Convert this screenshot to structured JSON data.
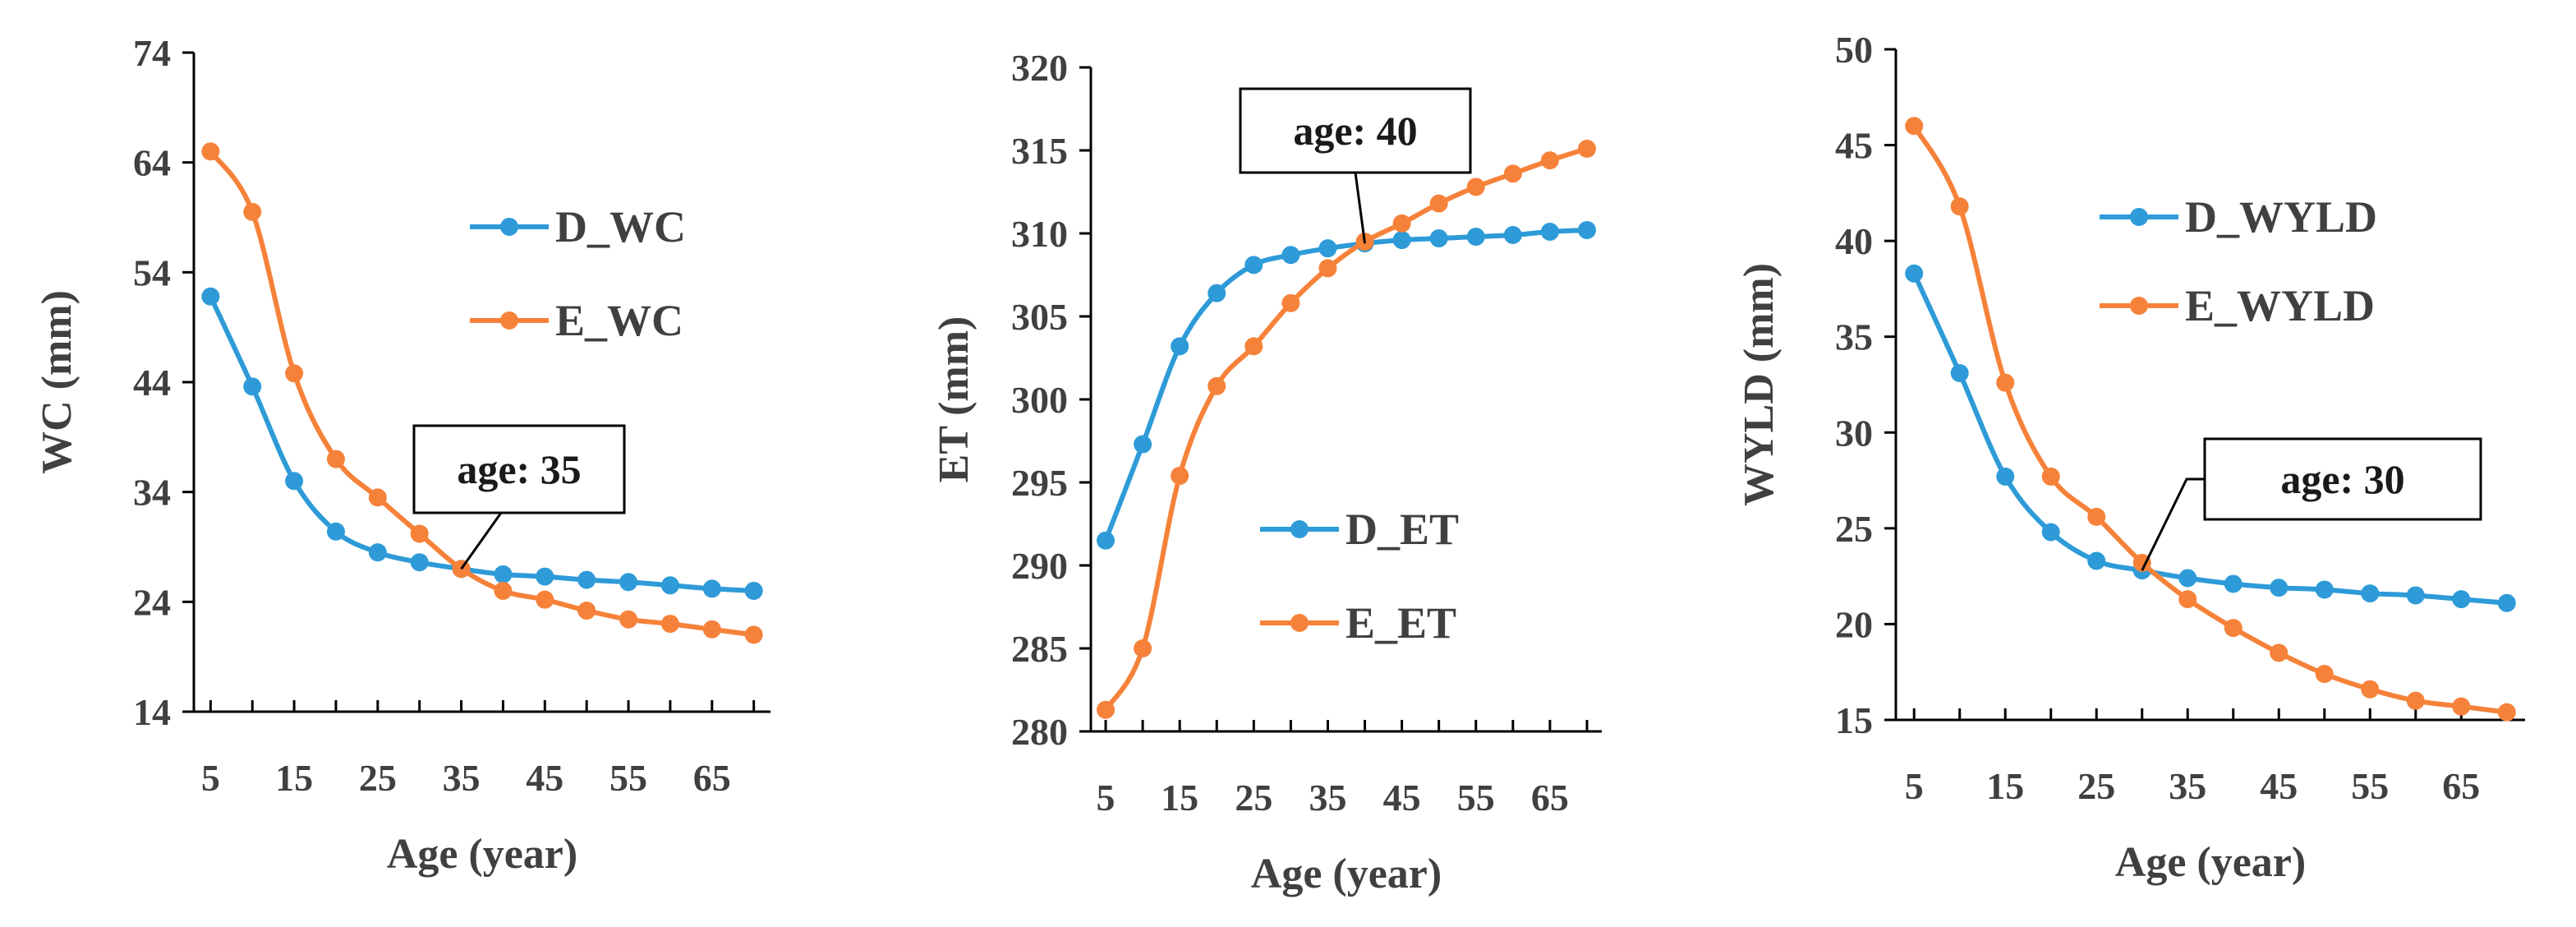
{
  "colors": {
    "D": "#2E9BD8",
    "E": "#F6823A"
  },
  "chart_data": [
    {
      "type": "line",
      "ylabel": "WC (mm)",
      "xlabel": "Age (year)",
      "ylim": [
        14,
        74
      ],
      "yticks": [
        14,
        24,
        34,
        44,
        54,
        64,
        74
      ],
      "xlim": [
        3,
        72
      ],
      "xtick_labels": [
        5,
        15,
        25,
        35,
        45,
        55,
        65
      ],
      "x": [
        5,
        10,
        15,
        20,
        25,
        30,
        35,
        40,
        45,
        50,
        55,
        60,
        65,
        70
      ],
      "series": [
        {
          "name": "D_WC",
          "color_key": "D",
          "values": [
            51.8,
            43.6,
            35,
            30.4,
            28.5,
            27.6,
            27,
            26.5,
            26.3,
            26,
            25.8,
            25.5,
            25.2,
            25
          ]
        },
        {
          "name": "E_WC",
          "color_key": "E",
          "values": [
            65,
            59.5,
            44.8,
            37,
            33.5,
            30.2,
            27,
            25,
            24.2,
            23.2,
            22.4,
            22,
            21.5,
            21
          ]
        }
      ],
      "legend_position": "right-middle",
      "annotation": {
        "text": "age: 35",
        "x": 35
      }
    },
    {
      "type": "line",
      "ylabel": "ET (mm)",
      "xlabel": "Age (year)",
      "ylim": [
        280,
        320
      ],
      "yticks": [
        280,
        285,
        290,
        295,
        300,
        305,
        310,
        315,
        320
      ],
      "xlim": [
        3,
        72
      ],
      "xtick_labels": [
        5,
        15,
        25,
        35,
        45,
        55,
        65
      ],
      "x": [
        5,
        10,
        15,
        20,
        25,
        30,
        35,
        40,
        45,
        50,
        55,
        60,
        65,
        70
      ],
      "series": [
        {
          "name": "D_ET",
          "color_key": "D",
          "values": [
            291.5,
            297.3,
            303.2,
            306.4,
            308.1,
            308.7,
            309.1,
            309.4,
            309.6,
            309.7,
            309.8,
            309.9,
            310.1,
            310.2
          ]
        },
        {
          "name": "E_ET",
          "color_key": "E",
          "values": [
            281.3,
            285,
            295.4,
            300.8,
            303.2,
            305.8,
            307.9,
            309.5,
            310.6,
            311.8,
            312.8,
            313.6,
            314.4,
            315.1
          ]
        }
      ],
      "legend_position": "bottom-right",
      "annotation": {
        "text": "age: 40",
        "x": 40
      }
    },
    {
      "type": "line",
      "ylabel": "WYLD (mm)",
      "xlabel": "Age (year)",
      "ylim": [
        15,
        50
      ],
      "yticks": [
        15,
        20,
        25,
        30,
        35,
        40,
        45,
        50
      ],
      "xlim": [
        3,
        72
      ],
      "xtick_labels": [
        5,
        15,
        25,
        35,
        45,
        55,
        65
      ],
      "x": [
        5,
        10,
        15,
        20,
        25,
        30,
        35,
        40,
        45,
        50,
        55,
        60,
        65,
        70
      ],
      "series": [
        {
          "name": "D_WYLD",
          "color_key": "D",
          "values": [
            38.3,
            33.1,
            27.7,
            24.8,
            23.3,
            22.8,
            22.4,
            22.1,
            21.9,
            21.8,
            21.6,
            21.5,
            21.3,
            21.1
          ]
        },
        {
          "name": "E_WYLD",
          "color_key": "E",
          "values": [
            46,
            41.8,
            32.6,
            27.7,
            25.6,
            23.2,
            21.3,
            19.8,
            18.5,
            17.4,
            16.6,
            16,
            15.7,
            15.4
          ]
        }
      ],
      "legend_position": "top-right",
      "annotation": {
        "text": "age: 30",
        "x": 30
      }
    }
  ]
}
